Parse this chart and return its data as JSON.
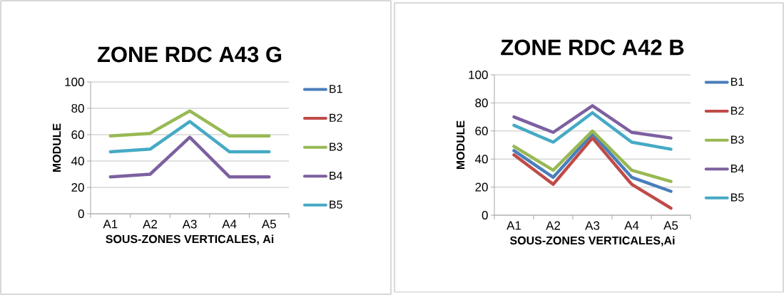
{
  "chart_data": [
    {
      "type": "line",
      "title": "ZONE RDC A43 G",
      "xlabel": "SOUS-ZONES VERTICALES, Ai",
      "ylabel": "MODULE",
      "categories": [
        "A1",
        "A2",
        "A3",
        "A4",
        "A5"
      ],
      "ylim": [
        0,
        100
      ],
      "yticks": [
        0,
        20,
        40,
        60,
        80,
        100
      ],
      "grid": "y",
      "legend": "right",
      "marker": "none",
      "line_style": "solid",
      "series": [
        {
          "name": "B1",
          "color": "#4a7ebb",
          "values": [
            null,
            null,
            null,
            null,
            null
          ]
        },
        {
          "name": "B2",
          "color": "#be4b48",
          "values": [
            null,
            null,
            null,
            null,
            null
          ]
        },
        {
          "name": "B3",
          "color": "#98b954",
          "values": [
            59,
            61,
            78,
            59,
            59
          ]
        },
        {
          "name": "B4",
          "color": "#7d60a0",
          "values": [
            28,
            30,
            58,
            28,
            28
          ]
        },
        {
          "name": "B5",
          "color": "#46aac5",
          "values": [
            47,
            49,
            70,
            47,
            47
          ]
        }
      ]
    },
    {
      "type": "line",
      "title": "ZONE RDC A42 B",
      "xlabel": "SOUS-ZONES VERTICALES,Ai",
      "ylabel": "MODULE",
      "categories": [
        "A1",
        "A2",
        "A3",
        "A4",
        "A5"
      ],
      "ylim": [
        0,
        100
      ],
      "yticks": [
        0,
        20,
        40,
        60,
        80,
        100
      ],
      "grid": "y",
      "legend": "right",
      "marker": "none",
      "line_style": "solid",
      "series": [
        {
          "name": "B1",
          "color": "#4a7ebb",
          "values": [
            46,
            27,
            58,
            27,
            17
          ]
        },
        {
          "name": "B2",
          "color": "#be4b48",
          "values": [
            43,
            22,
            55,
            22,
            5
          ]
        },
        {
          "name": "B3",
          "color": "#98b954",
          "values": [
            49,
            32,
            60,
            32,
            24
          ]
        },
        {
          "name": "B4",
          "color": "#7d60a0",
          "values": [
            70,
            59,
            78,
            59,
            55
          ]
        },
        {
          "name": "B5",
          "color": "#46aac5",
          "values": [
            64,
            52,
            73,
            52,
            47
          ]
        }
      ]
    }
  ]
}
